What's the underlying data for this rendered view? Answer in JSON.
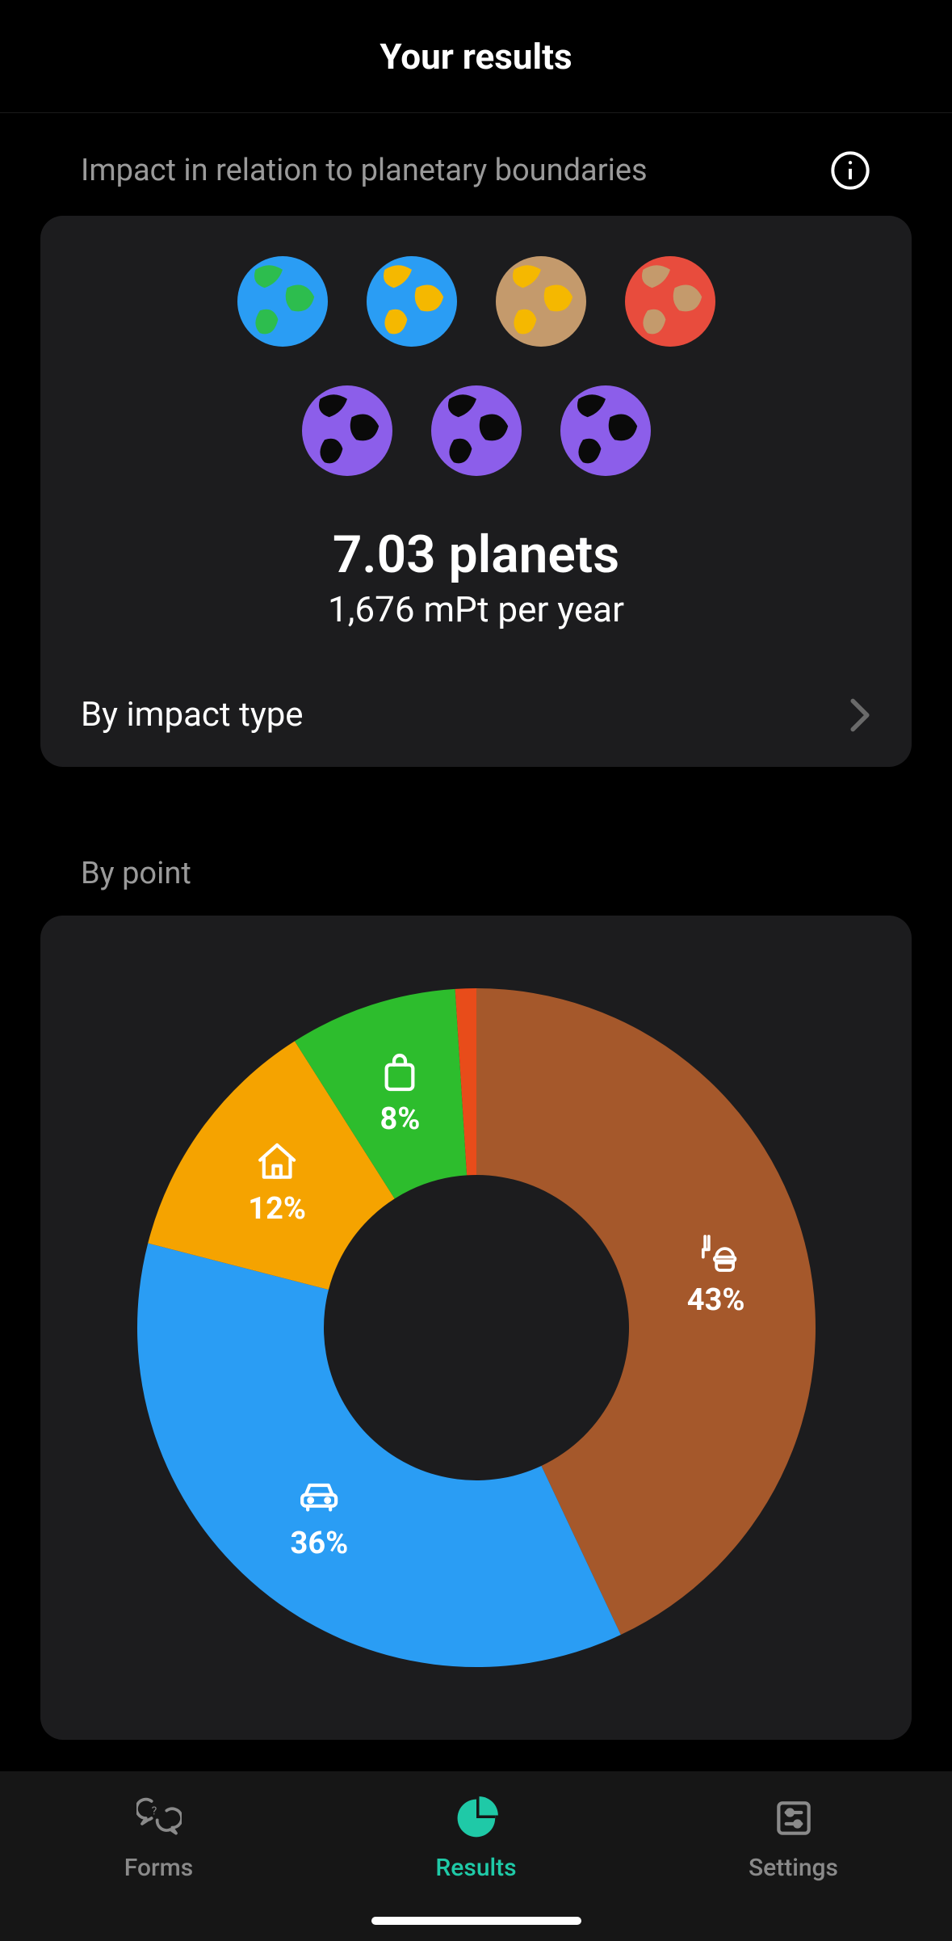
{
  "header": {
    "title": "Your results"
  },
  "impact_section": {
    "label": "Impact in relation to planetary boundaries",
    "planets_value": "7.03 planets",
    "planets_sub": "1,676 mPt per year",
    "by_impact_label": "By impact type",
    "planet_icons": [
      {
        "bg": "#2a9df4",
        "land": "#2dbd4e"
      },
      {
        "bg": "#2a9df4",
        "land": "#f5b800"
      },
      {
        "bg": "#c49a6c",
        "land": "#f5b800"
      },
      {
        "bg": "#e84c3d",
        "land": "#c49a6c"
      },
      {
        "bg": "#8c5eea",
        "land": "#0a0a0a"
      },
      {
        "bg": "#8c5eea",
        "land": "#0a0a0a"
      },
      {
        "bg": "#8c5eea",
        "land": "#0a0a0a"
      }
    ]
  },
  "bypoint_section": {
    "label": "By point",
    "chart": {
      "type": "donut",
      "inner_radius_ratio": 0.45,
      "background_color": "#1c1c1e",
      "slices": [
        {
          "name": "food",
          "value": 43,
          "label": "43%",
          "color": "#a5582b",
          "icon": "food-icon"
        },
        {
          "name": "transport",
          "value": 36,
          "label": "36%",
          "color": "#2a9df4",
          "icon": "car-icon"
        },
        {
          "name": "home",
          "value": 12,
          "label": "12%",
          "color": "#f5a300",
          "icon": "home-icon"
        },
        {
          "name": "shopping",
          "value": 8,
          "label": "8%",
          "color": "#2dbd2d",
          "icon": "bag-icon"
        },
        {
          "name": "other",
          "value": 1,
          "label": "",
          "color": "#e84c1a",
          "icon": ""
        }
      ]
    }
  },
  "tabbar": {
    "items": [
      {
        "label": "Forms",
        "icon": "forms-icon",
        "active": false
      },
      {
        "label": "Results",
        "icon": "results-icon",
        "active": true
      },
      {
        "label": "Settings",
        "icon": "settings-icon",
        "active": false
      }
    ],
    "active_color": "#1fc9a7",
    "inactive_color": "#8a8a8a"
  }
}
